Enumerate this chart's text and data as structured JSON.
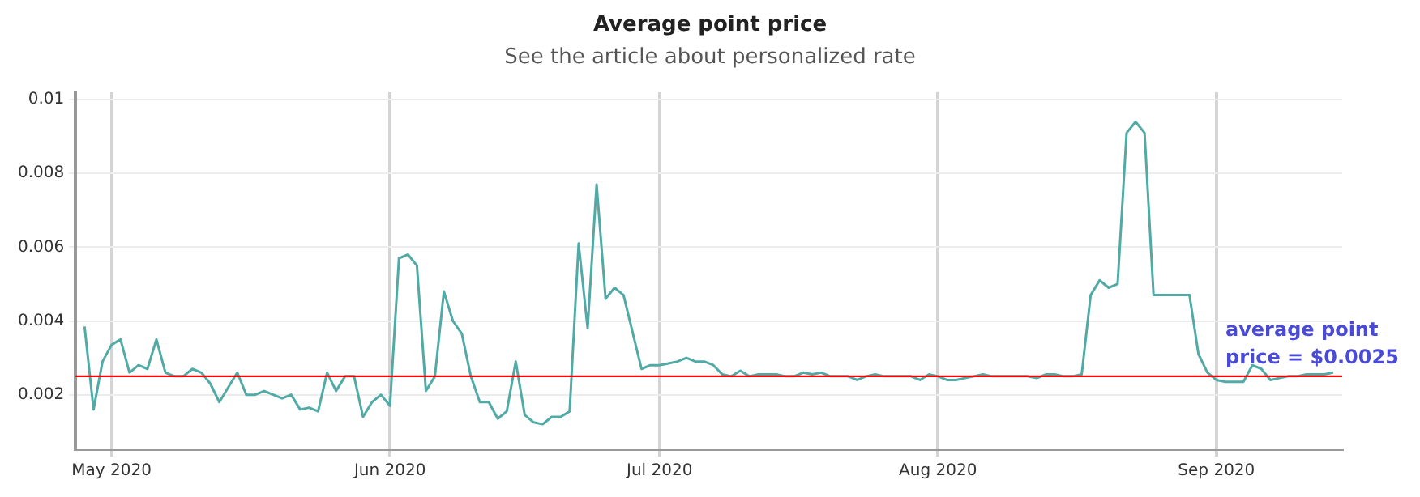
{
  "chart_data": {
    "type": "line",
    "title": "Average point price",
    "subtitle": "See the article about personalized rate",
    "x": [
      "2020-04-28",
      "2020-04-29",
      "2020-04-30",
      "2020-05-01",
      "2020-05-02",
      "2020-05-03",
      "2020-05-04",
      "2020-05-05",
      "2020-05-06",
      "2020-05-07",
      "2020-05-08",
      "2020-05-09",
      "2020-05-10",
      "2020-05-11",
      "2020-05-12",
      "2020-05-13",
      "2020-05-14",
      "2020-05-15",
      "2020-05-16",
      "2020-05-17",
      "2020-05-18",
      "2020-05-19",
      "2020-05-20",
      "2020-05-21",
      "2020-05-22",
      "2020-05-23",
      "2020-05-24",
      "2020-05-25",
      "2020-05-26",
      "2020-05-27",
      "2020-05-28",
      "2020-05-29",
      "2020-05-30",
      "2020-05-31",
      "2020-06-01",
      "2020-06-02",
      "2020-06-03",
      "2020-06-04",
      "2020-06-05",
      "2020-06-06",
      "2020-06-07",
      "2020-06-08",
      "2020-06-09",
      "2020-06-10",
      "2020-06-11",
      "2020-06-12",
      "2020-06-13",
      "2020-06-14",
      "2020-06-15",
      "2020-06-16",
      "2020-06-17",
      "2020-06-18",
      "2020-06-19",
      "2020-06-20",
      "2020-06-21",
      "2020-06-22",
      "2020-06-23",
      "2020-06-24",
      "2020-06-25",
      "2020-06-26",
      "2020-06-27",
      "2020-06-28",
      "2020-06-29",
      "2020-06-30",
      "2020-07-01",
      "2020-07-02",
      "2020-07-03",
      "2020-07-04",
      "2020-07-05",
      "2020-07-06",
      "2020-07-07",
      "2020-07-08",
      "2020-07-09",
      "2020-07-10",
      "2020-07-11",
      "2020-07-12",
      "2020-07-13",
      "2020-07-14",
      "2020-07-15",
      "2020-07-16",
      "2020-07-17",
      "2020-07-18",
      "2020-07-19",
      "2020-07-20",
      "2020-07-21",
      "2020-07-22",
      "2020-07-23",
      "2020-07-24",
      "2020-07-25",
      "2020-07-26",
      "2020-07-27",
      "2020-07-28",
      "2020-07-29",
      "2020-07-30",
      "2020-07-31",
      "2020-08-01",
      "2020-08-02",
      "2020-08-03",
      "2020-08-04",
      "2020-08-05",
      "2020-08-06",
      "2020-08-07",
      "2020-08-08",
      "2020-08-09",
      "2020-08-10",
      "2020-08-11",
      "2020-08-12",
      "2020-08-13",
      "2020-08-14",
      "2020-08-15",
      "2020-08-16",
      "2020-08-17",
      "2020-08-18",
      "2020-08-19",
      "2020-08-20",
      "2020-08-21",
      "2020-08-22",
      "2020-08-23",
      "2020-08-24",
      "2020-08-25",
      "2020-08-26",
      "2020-08-27",
      "2020-08-28",
      "2020-08-29",
      "2020-08-30",
      "2020-08-31",
      "2020-09-01",
      "2020-09-02",
      "2020-09-03",
      "2020-09-04",
      "2020-09-05",
      "2020-09-06",
      "2020-09-07",
      "2020-09-08",
      "2020-09-09",
      "2020-09-10",
      "2020-09-11",
      "2020-09-12",
      "2020-09-13",
      "2020-09-14"
    ],
    "series": [
      {
        "color": "#52aaa6",
        "values": [
          0.00385,
          0.0016,
          0.0029,
          0.00335,
          0.0035,
          0.0026,
          0.0028,
          0.0027,
          0.0035,
          0.0026,
          0.0025,
          0.0025,
          0.0027,
          0.0026,
          0.0023,
          0.0018,
          0.0022,
          0.0026,
          0.002,
          0.002,
          0.0021,
          0.002,
          0.0019,
          0.002,
          0.0016,
          0.00165,
          0.00155,
          0.0026,
          0.0021,
          0.0025,
          0.0025,
          0.0014,
          0.0018,
          0.002,
          0.0017,
          0.0057,
          0.0058,
          0.0055,
          0.0021,
          0.0025,
          0.0048,
          0.004,
          0.00365,
          0.0025,
          0.0018,
          0.0018,
          0.00135,
          0.00155,
          0.0029,
          0.00145,
          0.00125,
          0.0012,
          0.0014,
          0.0014,
          0.00155,
          0.0061,
          0.0038,
          0.0077,
          0.0046,
          0.0049,
          0.0047,
          0.0037,
          0.0027,
          0.0028,
          0.0028,
          0.00285,
          0.0029,
          0.003,
          0.0029,
          0.0029,
          0.0028,
          0.00255,
          0.0025,
          0.00265,
          0.0025,
          0.00255,
          0.00255,
          0.00255,
          0.0025,
          0.0025,
          0.0026,
          0.00255,
          0.0026,
          0.0025,
          0.0025,
          0.0025,
          0.0024,
          0.0025,
          0.00255,
          0.0025,
          0.0025,
          0.0025,
          0.0025,
          0.0024,
          0.00255,
          0.0025,
          0.0024,
          0.0024,
          0.00245,
          0.0025,
          0.00255,
          0.0025,
          0.0025,
          0.0025,
          0.0025,
          0.0025,
          0.00245,
          0.00255,
          0.00255,
          0.0025,
          0.0025,
          0.00255,
          0.0047,
          0.0051,
          0.0049,
          0.005,
          0.0091,
          0.0094,
          0.0091,
          0.0047,
          0.0047,
          0.0047,
          0.0047,
          0.0047,
          0.0031,
          0.0026,
          0.0024,
          0.00235,
          0.00235,
          0.00235,
          0.0028,
          0.0027,
          0.0024,
          0.00245,
          0.0025,
          0.0025,
          0.00255,
          0.00255,
          0.00255,
          0.0026
        ]
      }
    ],
    "xlim": [
      "2020-04-27",
      "2020-09-15"
    ],
    "xticks": [
      {
        "value": "2020-05-01",
        "label": "May 2020"
      },
      {
        "value": "2020-06-01",
        "label": "Jun 2020"
      },
      {
        "value": "2020-07-01",
        "label": "Jul 2020"
      },
      {
        "value": "2020-08-01",
        "label": "Aug 2020"
      },
      {
        "value": "2020-09-01",
        "label": "Sep 2020"
      }
    ],
    "ylim": [
      0.0005,
      0.0102
    ],
    "yticks": [
      0.002,
      0.004,
      0.006,
      0.008,
      {
        "value": 0.01,
        "label": "0.01"
      }
    ],
    "ref_lines": [
      {
        "axis": "y",
        "value": 0.0025,
        "label": "average point price = $0.0025",
        "color": "#ff0000"
      }
    ],
    "grid": true,
    "legend": false,
    "marker": "none",
    "line_style": "solid"
  }
}
